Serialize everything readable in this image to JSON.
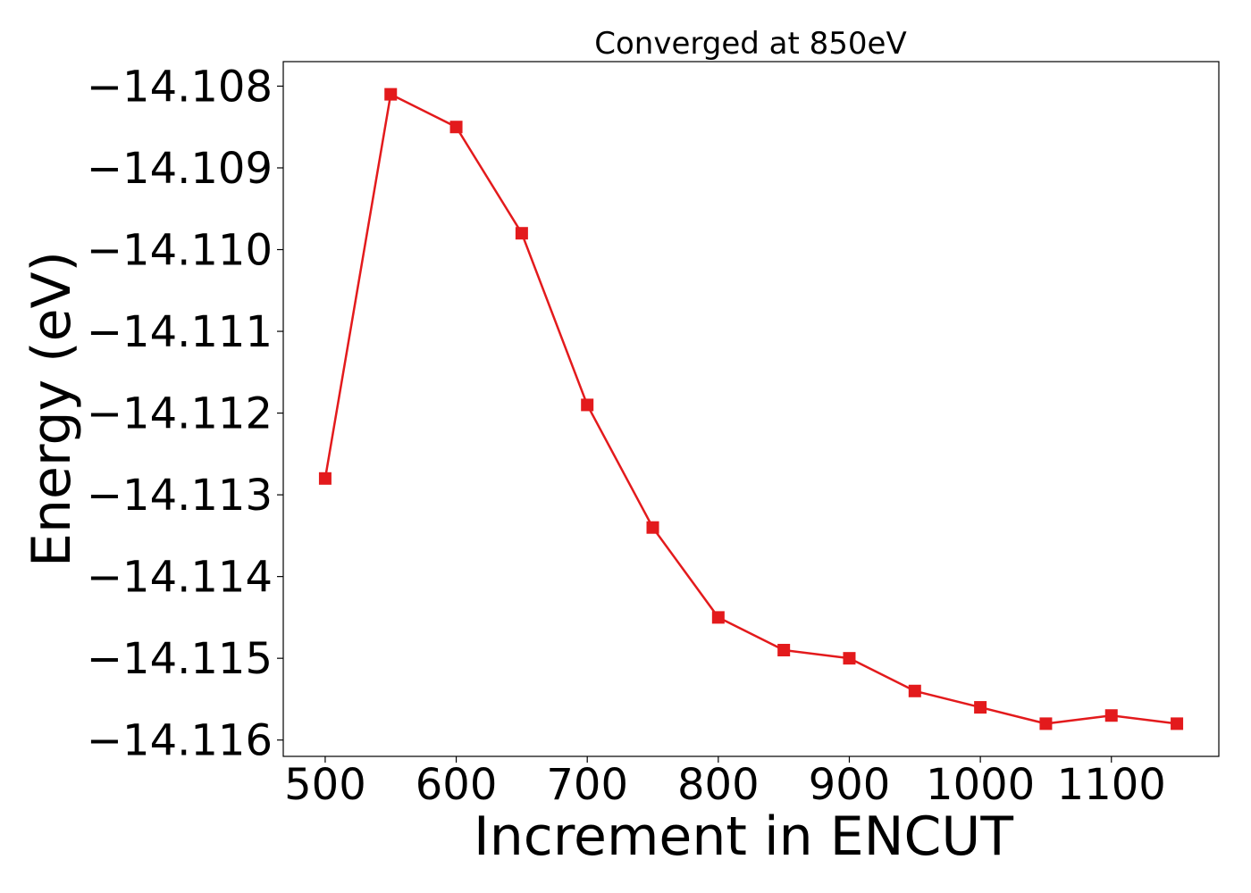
{
  "chart_data": {
    "type": "line",
    "title": "Converged at 850eV",
    "xlabel": "Increment in ENCUT",
    "ylabel": "Energy (eV)",
    "xlim": [
      468,
      1182
    ],
    "ylim": [
      -14.1162,
      -14.1077
    ],
    "xticks": [
      500,
      600,
      700,
      800,
      900,
      1000,
      1100
    ],
    "yticks": [
      -14.108,
      -14.109,
      -14.11,
      -14.111,
      -14.112,
      -14.113,
      -14.114,
      -14.115,
      -14.116
    ],
    "ytick_labels": [
      "−14.108",
      "−14.109",
      "−14.110",
      "−14.111",
      "−14.112",
      "−14.113",
      "−14.114",
      "−14.115",
      "−14.116"
    ],
    "grid": false,
    "marker": "square",
    "colors": {
      "line": "#e31a1c",
      "axes": "#000000"
    },
    "series": [
      {
        "x": [
          500,
          550,
          600,
          650,
          700,
          750,
          800,
          850,
          900,
          950,
          1000,
          1050,
          1100,
          1150
        ],
        "y": [
          -14.1128,
          -14.1081,
          -14.1085,
          -14.1098,
          -14.1119,
          -14.1134,
          -14.1145,
          -14.1149,
          -14.115,
          -14.1154,
          -14.1156,
          -14.1158,
          -14.1157,
          -14.1158
        ]
      }
    ]
  }
}
